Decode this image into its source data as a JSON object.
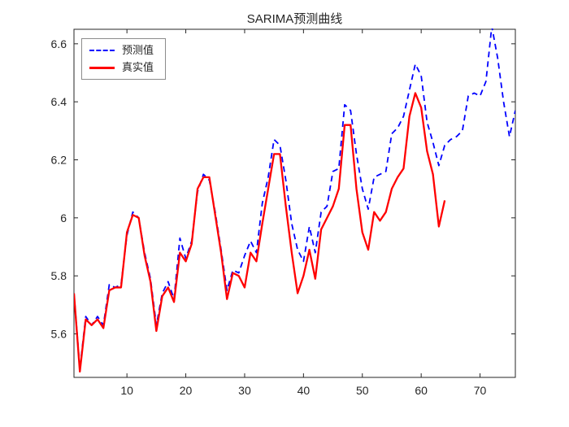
{
  "figure": {
    "background": "#ffffff",
    "axis_color": "#262626",
    "tick_label_color": "#262626"
  },
  "chart_data": {
    "type": "line",
    "title": "SARIMA预测曲线",
    "xlabel": "",
    "ylabel": "",
    "xlim": [
      1,
      76
    ],
    "ylim": [
      5.45,
      6.65
    ],
    "xticks": [
      10,
      20,
      30,
      40,
      50,
      60,
      70
    ],
    "xtick_labels": [
      "10",
      "20",
      "30",
      "40",
      "50",
      "60",
      "70"
    ],
    "yticks": [
      5.6,
      5.8,
      6,
      6.2,
      6.4,
      6.6
    ],
    "ytick_labels": [
      "5.6",
      "5.8",
      "6",
      "6.2",
      "6.4",
      "6.6"
    ],
    "grid": false,
    "legend": {
      "position": "top-left"
    },
    "series": [
      {
        "name": "预测值",
        "color": "#0000ff",
        "style": "dashed",
        "line_width": 1.8,
        "x_start": 1,
        "values": [
          5.74,
          5.48,
          5.66,
          5.63,
          5.66,
          5.63,
          5.77,
          5.76,
          5.77,
          5.94,
          6.02,
          6.0,
          5.88,
          5.79,
          5.63,
          5.74,
          5.78,
          5.72,
          5.93,
          5.86,
          5.92,
          6.09,
          6.15,
          6.13,
          6.02,
          5.89,
          5.75,
          5.82,
          5.81,
          5.87,
          5.92,
          5.88,
          6.05,
          6.14,
          6.27,
          6.25,
          6.13,
          5.98,
          5.89,
          5.85,
          5.97,
          5.88,
          6.02,
          6.04,
          6.16,
          6.17,
          6.39,
          6.37,
          6.22,
          6.1,
          6.03,
          6.14,
          6.15,
          6.16,
          6.29,
          6.31,
          6.35,
          6.44,
          6.53,
          6.49,
          6.33,
          6.26,
          6.18,
          6.25,
          6.27,
          6.28,
          6.3,
          6.42,
          6.43,
          6.42,
          6.47,
          6.66,
          6.55,
          6.4,
          6.28,
          6.37
        ]
      },
      {
        "name": "真实值",
        "color": "#ff0000",
        "style": "solid",
        "line_width": 2.3,
        "x_start": 1,
        "values": [
          5.74,
          5.47,
          5.65,
          5.63,
          5.65,
          5.62,
          5.75,
          5.76,
          5.76,
          5.95,
          6.01,
          6.0,
          5.87,
          5.78,
          5.61,
          5.73,
          5.76,
          5.71,
          5.88,
          5.85,
          5.91,
          6.1,
          6.14,
          6.14,
          6.01,
          5.88,
          5.72,
          5.81,
          5.8,
          5.76,
          5.88,
          5.85,
          5.98,
          6.1,
          6.22,
          6.22,
          6.04,
          5.88,
          5.74,
          5.8,
          5.89,
          5.79,
          5.96,
          6.0,
          6.04,
          6.1,
          6.32,
          6.32,
          6.1,
          5.95,
          5.89,
          6.02,
          5.99,
          6.02,
          6.1,
          6.14,
          6.17,
          6.35,
          6.43,
          6.38,
          6.23,
          6.15,
          5.97,
          6.06
        ]
      }
    ]
  }
}
